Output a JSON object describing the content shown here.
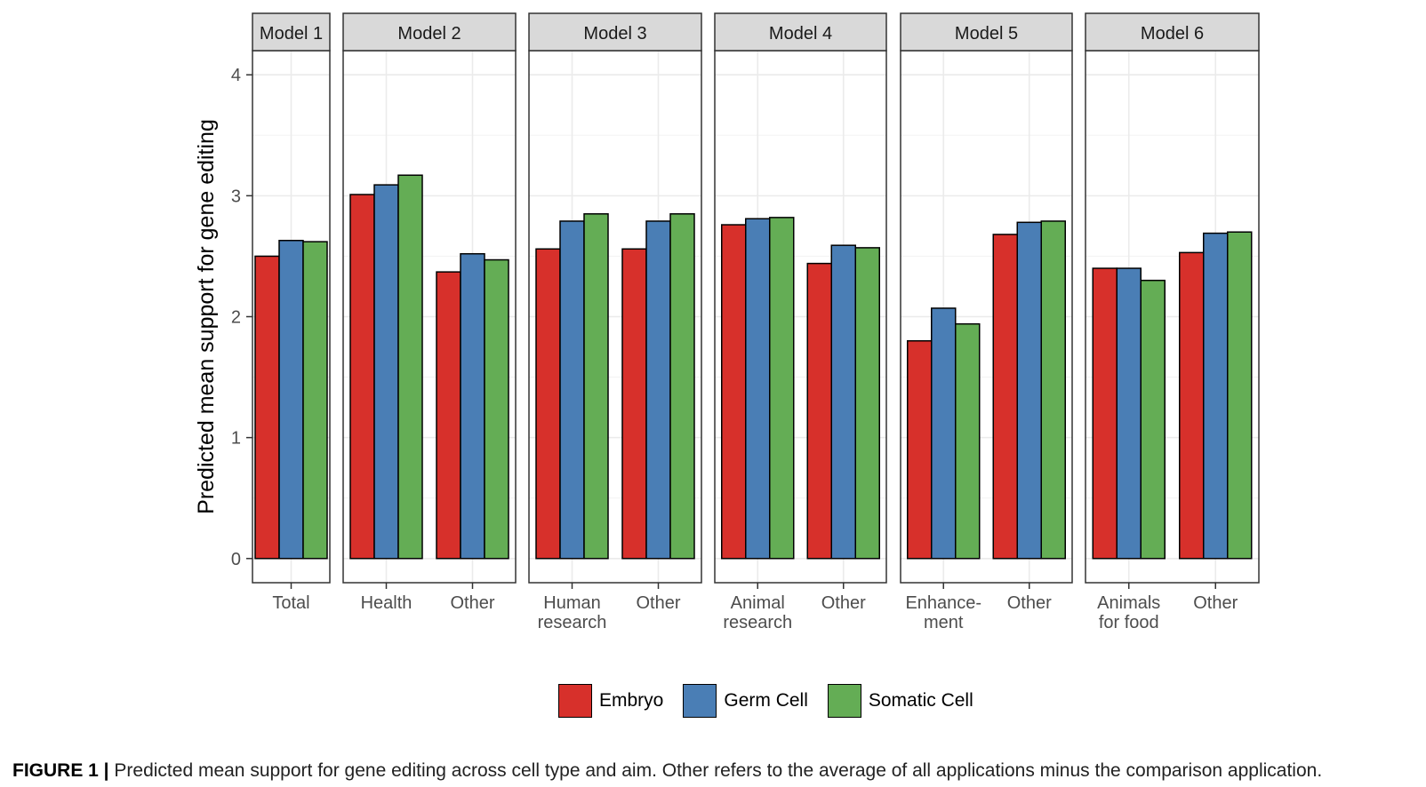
{
  "caption": {
    "label": "FIGURE 1 |",
    "text": "Predicted mean support for gene editing across cell type and aim. Other refers to the average of all applications minus the comparison application."
  },
  "chart_data": {
    "type": "bar",
    "ylabel": "Predicted mean support for gene editing",
    "ylim": [
      -0.2,
      4.2
    ],
    "yticks": [
      0,
      1,
      2,
      3,
      4
    ],
    "grid": true,
    "legend_position": "bottom",
    "series": [
      {
        "name": "Embryo",
        "color": "#d7302b"
      },
      {
        "name": "Germ Cell",
        "color": "#4a7eb5"
      },
      {
        "name": "Somatic Cell",
        "color": "#64ad55"
      }
    ],
    "panels": [
      {
        "title": "Model 1",
        "groups": [
          {
            "label": [
              "Total"
            ],
            "values": [
              2.5,
              2.63,
              2.62
            ]
          }
        ]
      },
      {
        "title": "Model 2",
        "groups": [
          {
            "label": [
              "Health"
            ],
            "values": [
              3.01,
              3.09,
              3.17
            ]
          },
          {
            "label": [
              "Other"
            ],
            "values": [
              2.37,
              2.52,
              2.47
            ]
          }
        ]
      },
      {
        "title": "Model 3",
        "groups": [
          {
            "label": [
              "Human",
              "research"
            ],
            "values": [
              2.56,
              2.79,
              2.85
            ]
          },
          {
            "label": [
              "Other"
            ],
            "values": [
              2.56,
              2.79,
              2.85
            ]
          }
        ]
      },
      {
        "title": "Model 4",
        "groups": [
          {
            "label": [
              "Animal",
              "research"
            ],
            "values": [
              2.76,
              2.81,
              2.82
            ]
          },
          {
            "label": [
              "Other"
            ],
            "values": [
              2.44,
              2.59,
              2.57
            ]
          }
        ]
      },
      {
        "title": "Model 5",
        "groups": [
          {
            "label": [
              "Enhance-",
              "ment"
            ],
            "values": [
              1.8,
              2.07,
              1.94
            ]
          },
          {
            "label": [
              "Other"
            ],
            "values": [
              2.68,
              2.78,
              2.79
            ]
          }
        ]
      },
      {
        "title": "Model 6",
        "groups": [
          {
            "label": [
              "Animals",
              "for food"
            ],
            "values": [
              2.4,
              2.4,
              2.3
            ]
          },
          {
            "label": [
              "Other"
            ],
            "values": [
              2.53,
              2.69,
              2.7
            ]
          }
        ]
      }
    ]
  }
}
